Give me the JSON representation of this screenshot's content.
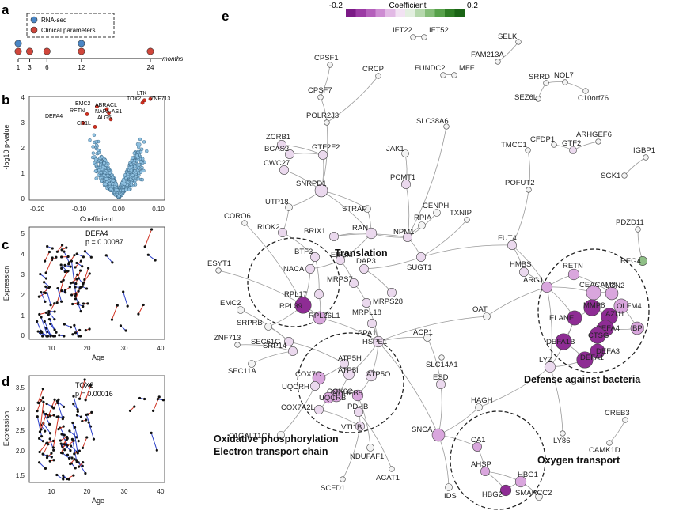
{
  "panels": {
    "a": {
      "label": "a",
      "legend": [
        "RNA-seq",
        "Clinical parameters"
      ],
      "ticks": [
        "1",
        "3",
        "6",
        "12",
        "24"
      ],
      "months": [
        1,
        3,
        6,
        12,
        24
      ],
      "rna_seq_months": [
        1,
        12
      ],
      "axis_unit": "months",
      "colors": {
        "rna_seq": "#4a86c5",
        "clinical": "#d0463b"
      }
    },
    "b": {
      "label": "b",
      "xlabel": "Coefficient",
      "ylabel": "-log10 p-value",
      "xticks": [
        "-0.20",
        "-0.10",
        "0.00",
        "0.10"
      ],
      "yticks": [
        "0",
        "1",
        "2",
        "3",
        "4"
      ],
      "highlighted_genes": [
        "LTK",
        "TOX2",
        "ZNF713",
        "EMC2",
        "ABRACL",
        "RETN",
        "NAPA-AS1",
        "ALG5",
        "DEFA4",
        "CR1L"
      ]
    },
    "c": {
      "label": "c",
      "gene": "DEFA4",
      "pvalue": "p = 0.00087",
      "xlabel": "Age",
      "ylabel": "Expression",
      "xticks": [
        "10",
        "20",
        "30",
        "40"
      ],
      "yticks": [
        "0",
        "1",
        "2",
        "3",
        "4",
        "5"
      ]
    },
    "d": {
      "label": "d",
      "gene": "TOX2",
      "pvalue": "p = 0.00016",
      "xlabel": "Age",
      "ylabel": "Expression",
      "xticks": [
        "10",
        "20",
        "30",
        "40"
      ],
      "yticks": [
        "1.5",
        "2.0",
        "2.5",
        "3.0",
        "3.5"
      ]
    },
    "e": {
      "label": "e",
      "colorbar": {
        "min": "-0.2",
        "max": "0.2",
        "title": "Coefficient",
        "colors": [
          "#7b1a86",
          "#9b3aa4",
          "#b45fbb",
          "#cd8bd2",
          "#e2b9e5",
          "#f2e2f3",
          "#e3efe0",
          "#b6d8ad",
          "#85bd78",
          "#57a14a",
          "#2e7d24",
          "#1a6415"
        ]
      },
      "modules": [
        "Translation",
        "Oxidative phosphorylation",
        "Electron transport chain",
        "Defense against bacteria",
        "Oxygen transport"
      ],
      "genes": [
        "IFT22",
        "IFT52",
        "SELK",
        "FUNDC2",
        "MFF",
        "FAM213A",
        "CPSF1",
        "CRCP",
        "CPSF7",
        "SRRD",
        "NOL7",
        "SEZ6L",
        "C10orf76",
        "POLR2J3",
        "ZCRB1",
        "SLC38A6",
        "BCAS2",
        "GTF2F2",
        "JAK1",
        "CFDP1",
        "ARHGEF6",
        "CWC27",
        "TMCC1",
        "GTF2I",
        "SNRPD1",
        "PCMT1",
        "IGBP1",
        "SGK1",
        "STRAP",
        "POFUT2",
        "UTP18",
        "CENPH",
        "RIOK2",
        "BRIX1",
        "NPM1",
        "RPIA",
        "TXNIP",
        "CORO6",
        "RAN",
        "PDZD11",
        "SUGT1",
        "FUT4",
        "BTF3",
        "EIF3M",
        "REG4",
        "NACA",
        "DAP3",
        "HMBS",
        "RETN",
        "ESYT1",
        "MRPS7",
        "RPL17",
        "MRPS28",
        "ARG1",
        "RPL39",
        "RPL26L1",
        "MRPL18",
        "CEACAM8",
        "LCN2",
        "EMC2",
        "SRPRB",
        "OAT",
        "MMP8",
        "OLFM4",
        "AZU1",
        "PPA1",
        "ELANE",
        "SEC61G",
        "HSPE1",
        "DEFA4",
        "BPI",
        "SRP14",
        "CTSG",
        "ZNF713",
        "ATP5H",
        "DEFA1B",
        "ACP1",
        "DEFA3",
        "SEC11A",
        "COX7C",
        "ATP5I",
        "ATP5O",
        "DEFA1",
        "SLC14A1",
        "COX6C",
        "UQCRH",
        "LYZ",
        "UQCRB",
        "NDUFB5",
        "ESD",
        "COX7A2L",
        "PDHB",
        "HAGH",
        "C1GALT1C1",
        "VTI1B",
        "LY86",
        "CREB3",
        "SNCA",
        "NDUFAF1",
        "CAMK1D",
        "CA1",
        "AHSP",
        "SCFD1",
        "ACAT1",
        "HBG1",
        "IDS",
        "SMARCC2",
        "HBG2"
      ]
    }
  }
}
